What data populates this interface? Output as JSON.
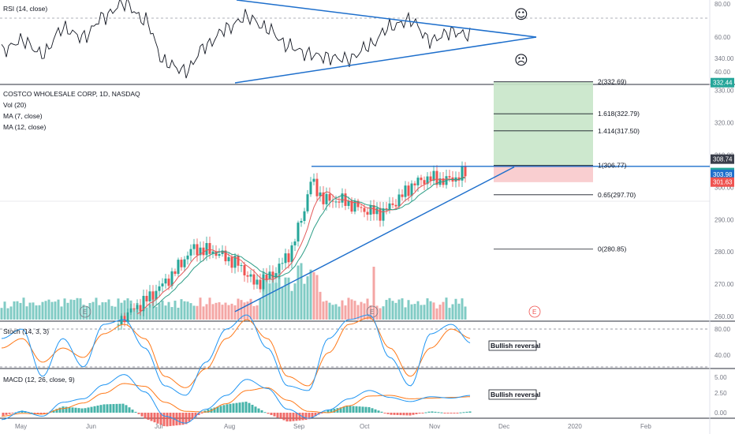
{
  "colors": {
    "up": "#26a69a",
    "down": "#ef5350",
    "vol_up": "#80cbc4",
    "vol_down": "#f4a6a4",
    "trend": "#1e6fcc",
    "ma7": "#e35a5a",
    "ma12": "#2e9e87",
    "stoch_k": "#2196f3",
    "stoch_d": "#ff7a1a",
    "fib_green": "#c8e6c9",
    "fib_red": "#f8c9cb"
  },
  "rsi_panel": {
    "legend": "RSI (14, close)",
    "axis": [
      "80.00",
      "60.00",
      "40.00"
    ],
    "face_happy": "☺",
    "face_sad": "☹"
  },
  "price_panel": {
    "legend": [
      "COSTCO WHOLESALE CORP, 1D, NASDAQ",
      "Vol (20)",
      "MA (7, close)",
      "MA (12, close)"
    ],
    "axis": [
      "340.00",
      "330.00",
      "320.00",
      "310.00",
      "300.00",
      "290.00",
      "280.00",
      "270.00",
      "260.00"
    ],
    "price_tags": [
      {
        "text": "332.44",
        "value": 332.44,
        "color": "#26a69a"
      },
      {
        "text": "308.74",
        "value": 308.74,
        "color": "#3a3e4a"
      },
      {
        "text": "304.59",
        "value": 304.59,
        "color": "#26a69a"
      },
      {
        "text": "303.98",
        "value": 303.98,
        "color": "#1e6fcc"
      },
      {
        "text": "301.63",
        "value": 301.63,
        "color": "#ef5350"
      }
    ],
    "fib_levels": [
      {
        "label": "2(332.69)",
        "value": 332.69
      },
      {
        "label": "1.618(322.79)",
        "value": 322.79
      },
      {
        "label": "1.414(317.50)",
        "value": 317.5
      },
      {
        "label": "1(306.77)",
        "value": 306.77
      },
      {
        "label": "0.65(297.70)",
        "value": 297.7
      },
      {
        "label": "0(280.85)",
        "value": 280.85
      }
    ],
    "earnings_marker": "E"
  },
  "stoch_panel": {
    "legend": "Stoch (14, 3, 3)",
    "axis": [
      "80.00",
      "40.00"
    ],
    "note": "Bullish reversal"
  },
  "macd_panel": {
    "legend": "MACD (12, 26, close, 9)",
    "axis": [
      "5.00",
      "2.50",
      "0.00"
    ],
    "note": "Bullish reversal"
  },
  "x_axis": [
    "May",
    "Jun",
    "Jul",
    "Aug",
    "Sep",
    "Oct",
    "Nov",
    "Dec",
    "2020",
    "Feb"
  ],
  "chart_data": {
    "type": "candlestick",
    "title": "COSTCO WHOLESALE CORP, 1D, NASDAQ",
    "ylim": [
      257,
      345
    ],
    "key_levels": {
      "resistance": 306.5,
      "ma_last": 303.98
    },
    "close_path": [
      {
        "date": "2019-05-01",
        "close": 247
      },
      {
        "date": "2019-05-15",
        "close": 250
      },
      {
        "date": "2019-06-01",
        "close": 251
      },
      {
        "date": "2019-06-15",
        "close": 260
      },
      {
        "date": "2019-06-26",
        "close": 266
      },
      {
        "date": "2019-07-05",
        "close": 272
      },
      {
        "date": "2019-07-15",
        "close": 281
      },
      {
        "date": "2019-07-25",
        "close": 280
      },
      {
        "date": "2019-08-05",
        "close": 276
      },
      {
        "date": "2019-08-12",
        "close": 270
      },
      {
        "date": "2019-08-20",
        "close": 273
      },
      {
        "date": "2019-08-28",
        "close": 280
      },
      {
        "date": "2019-09-03",
        "close": 293
      },
      {
        "date": "2019-09-06",
        "close": 302
      },
      {
        "date": "2019-09-12",
        "close": 296
      },
      {
        "date": "2019-09-20",
        "close": 296
      },
      {
        "date": "2019-09-30",
        "close": 293
      },
      {
        "date": "2019-10-08",
        "close": 292
      },
      {
        "date": "2019-10-15",
        "close": 296
      },
      {
        "date": "2019-10-22",
        "close": 301
      },
      {
        "date": "2019-10-29",
        "close": 303
      },
      {
        "date": "2019-11-05",
        "close": 302
      },
      {
        "date": "2019-11-10",
        "close": 303
      },
      {
        "date": "2019-11-14",
        "close": 304.59
      }
    ],
    "rsi": [
      52,
      58,
      50,
      65,
      60,
      72,
      80,
      70,
      45,
      40,
      55,
      65,
      72,
      65,
      55,
      50,
      48,
      47,
      55,
      66,
      70,
      58,
      63,
      61
    ],
    "stoch_k": [
      70,
      80,
      30,
      70,
      40,
      85,
      90,
      60,
      20,
      10,
      45,
      80,
      95,
      60,
      20,
      15,
      70,
      90,
      95,
      50,
      20,
      75,
      85,
      65
    ],
    "stoch_d": [
      60,
      70,
      45,
      60,
      50,
      75,
      85,
      70,
      30,
      18,
      38,
      70,
      90,
      70,
      30,
      20,
      55,
      85,
      92,
      60,
      30,
      60,
      80,
      70
    ],
    "macd": [
      -1.0,
      0.2,
      -0.5,
      1.5,
      2.0,
      4.0,
      5.5,
      3.0,
      -0.5,
      -1.5,
      0.5,
      2.5,
      4.8,
      3.5,
      0.5,
      -0.8,
      0.4,
      2.0,
      3.2,
      2.2,
      1.6,
      2.3,
      2.1,
      2.5
    ],
    "signal": [
      -0.5,
      -0.1,
      -0.2,
      0.6,
      1.4,
      2.8,
      4.2,
      3.8,
      1.5,
      0.2,
      0.1,
      1.3,
      3.2,
      3.6,
      1.8,
      0.2,
      0.0,
      1.0,
      2.4,
      2.5,
      2.0,
      2.1,
      2.2,
      2.3
    ]
  }
}
